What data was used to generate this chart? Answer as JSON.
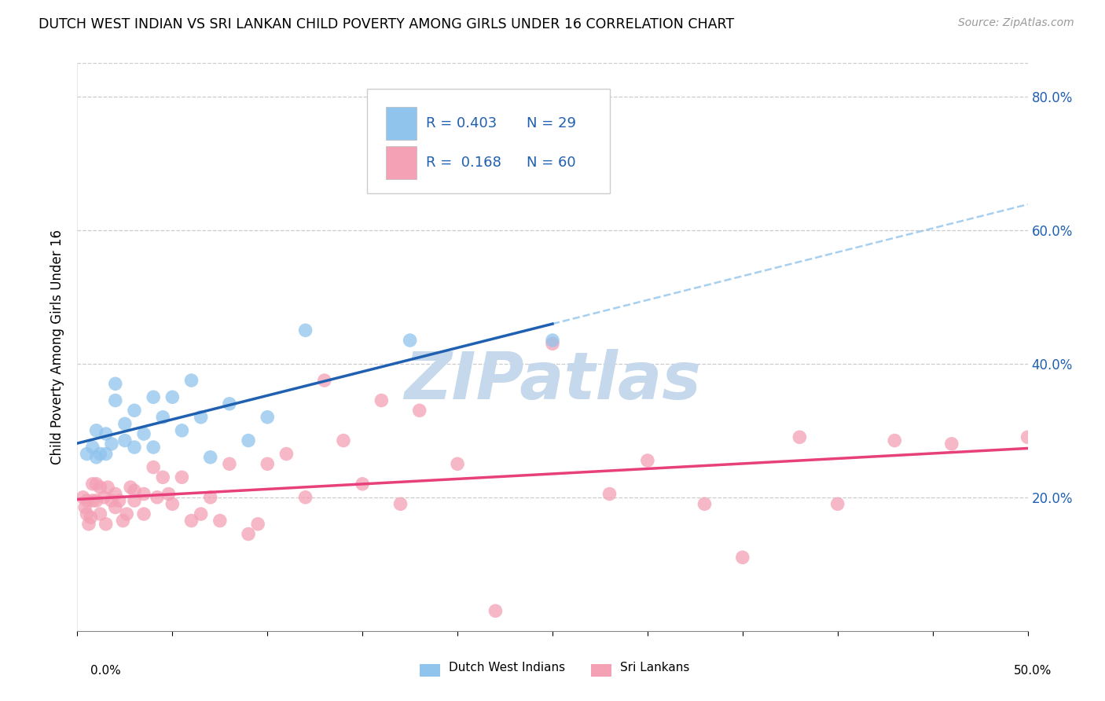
{
  "title": "DUTCH WEST INDIAN VS SRI LANKAN CHILD POVERTY AMONG GIRLS UNDER 16 CORRELATION CHART",
  "source": "Source: ZipAtlas.com",
  "ylabel": "Child Poverty Among Girls Under 16",
  "xlim": [
    0.0,
    0.5
  ],
  "ylim": [
    0.0,
    0.85
  ],
  "yticks": [
    0.2,
    0.4,
    0.6,
    0.8
  ],
  "ytick_labels": [
    "20.0%",
    "40.0%",
    "60.0%",
    "80.0%"
  ],
  "legend_label1": "Dutch West Indians",
  "legend_label2": "Sri Lankans",
  "color_dutch": "#90C4ED",
  "color_sri": "#F4A0B5",
  "line_color_dutch": "#2060B0",
  "line_color_sri": "#E8407A",
  "dashed_line_color": "#90C4ED",
  "dutch_points_x": [
    0.005,
    0.008,
    0.01,
    0.01,
    0.012,
    0.015,
    0.015,
    0.018,
    0.02,
    0.02,
    0.025,
    0.025,
    0.03,
    0.03,
    0.035,
    0.04,
    0.04,
    0.045,
    0.05,
    0.055,
    0.06,
    0.065,
    0.07,
    0.08,
    0.09,
    0.1,
    0.12,
    0.175,
    0.25
  ],
  "dutch_points_y": [
    0.265,
    0.275,
    0.26,
    0.3,
    0.265,
    0.295,
    0.265,
    0.28,
    0.37,
    0.345,
    0.285,
    0.31,
    0.275,
    0.33,
    0.295,
    0.275,
    0.35,
    0.32,
    0.35,
    0.3,
    0.375,
    0.32,
    0.26,
    0.34,
    0.285,
    0.32,
    0.45,
    0.435,
    0.435
  ],
  "sri_points_x": [
    0.003,
    0.004,
    0.005,
    0.005,
    0.006,
    0.007,
    0.008,
    0.008,
    0.01,
    0.01,
    0.012,
    0.012,
    0.014,
    0.015,
    0.016,
    0.018,
    0.02,
    0.02,
    0.022,
    0.024,
    0.026,
    0.028,
    0.03,
    0.03,
    0.035,
    0.035,
    0.04,
    0.042,
    0.045,
    0.048,
    0.05,
    0.055,
    0.06,
    0.065,
    0.07,
    0.075,
    0.08,
    0.09,
    0.095,
    0.1,
    0.11,
    0.12,
    0.13,
    0.14,
    0.15,
    0.16,
    0.17,
    0.18,
    0.2,
    0.22,
    0.25,
    0.28,
    0.3,
    0.33,
    0.35,
    0.38,
    0.4,
    0.43,
    0.46,
    0.5
  ],
  "sri_points_y": [
    0.2,
    0.185,
    0.195,
    0.175,
    0.16,
    0.17,
    0.22,
    0.195,
    0.195,
    0.22,
    0.215,
    0.175,
    0.2,
    0.16,
    0.215,
    0.195,
    0.205,
    0.185,
    0.195,
    0.165,
    0.175,
    0.215,
    0.21,
    0.195,
    0.205,
    0.175,
    0.245,
    0.2,
    0.23,
    0.205,
    0.19,
    0.23,
    0.165,
    0.175,
    0.2,
    0.165,
    0.25,
    0.145,
    0.16,
    0.25,
    0.265,
    0.2,
    0.375,
    0.285,
    0.22,
    0.345,
    0.19,
    0.33,
    0.25,
    0.03,
    0.43,
    0.205,
    0.255,
    0.19,
    0.11,
    0.29,
    0.19,
    0.285,
    0.28,
    0.29
  ],
  "watermark_text": "ZIPatlas",
  "watermark_color": "#C5D8EC"
}
